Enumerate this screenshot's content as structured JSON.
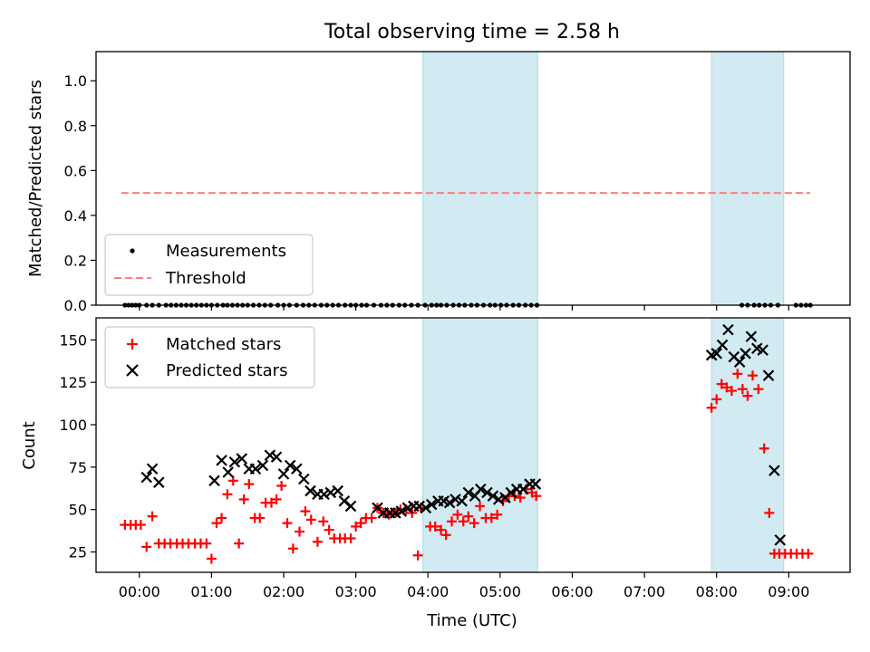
{
  "figure": {
    "title": "Total observing time = 2.58 h"
  },
  "colors": {
    "band": "#add8e6",
    "matched": "#ff0000",
    "predicted": "#000000",
    "measurement": "#000000",
    "threshold": "#ff7f7f"
  },
  "chart_data": [
    {
      "type": "scatter",
      "xlabel": "",
      "ylabel": "Matched/Predicted stars",
      "xlim": [
        -0.6,
        9.85
      ],
      "ylim": [
        0,
        1.13
      ],
      "yticks": [
        "0.0",
        "0.2",
        "0.4",
        "0.6",
        "0.8",
        "1.0"
      ],
      "grid": false,
      "legend": {
        "position": "lower-left",
        "entries": [
          "Measurements",
          "Threshold"
        ]
      },
      "shaded_intervals": [
        [
          3.93,
          5.52
        ],
        [
          7.93,
          8.93
        ]
      ],
      "threshold": {
        "name": "Threshold",
        "y": 0.5,
        "x": [
          -0.25,
          9.3
        ]
      },
      "series": [
        {
          "name": "Measurements",
          "x": [
            -0.2,
            -0.15,
            -0.1,
            -0.05,
            0,
            0.1,
            0.18,
            0.27,
            0.37,
            0.44,
            0.51,
            0.58,
            0.65,
            0.72,
            0.79,
            0.86,
            0.93,
            1,
            1.08,
            1.16,
            1.22,
            1.29,
            1.36,
            1.43,
            1.5,
            1.58,
            1.66,
            1.74,
            1.82,
            1.92,
            2,
            2.08,
            2.18,
            2.27,
            2.35,
            2.43,
            2.52,
            2.6,
            2.68,
            2.76,
            2.85,
            2.93,
            3,
            3.08,
            3.15,
            3.25,
            3.35,
            3.43,
            3.51,
            3.6,
            3.68,
            3.77,
            3.86,
            3.96,
            4.05,
            4.12,
            4.18,
            4.26,
            4.35,
            4.43,
            4.51,
            4.6,
            4.68,
            4.77,
            4.86,
            4.93,
            5.01,
            5.09,
            5.18,
            5.26,
            5.35,
            5.43,
            5.51,
            8.35,
            8.43,
            8.52,
            8.59,
            8.67,
            8.75,
            8.85,
            9.1,
            9.17,
            9.24,
            9.3
          ],
          "y": [
            0,
            0,
            0,
            0,
            0,
            0,
            0,
            0,
            0,
            0,
            0,
            0,
            0,
            0,
            0,
            0,
            0,
            0,
            0,
            0,
            0,
            0,
            0,
            0,
            0,
            0,
            0,
            0,
            0,
            0,
            0,
            0,
            0,
            0,
            0,
            0,
            0,
            0,
            0,
            0,
            0,
            0,
            0,
            0,
            0,
            0,
            0,
            0,
            0,
            0,
            0,
            0,
            0,
            0,
            0,
            0,
            0,
            0,
            0,
            0,
            0,
            0,
            0,
            0,
            0,
            0,
            0,
            0,
            0,
            0,
            0,
            0,
            0,
            0,
            0,
            0,
            0,
            0,
            0,
            0,
            0,
            0,
            0,
            0
          ]
        }
      ]
    },
    {
      "type": "scatter",
      "xlabel": "Time (UTC)",
      "ylabel": "Count",
      "xlim": [
        -0.6,
        9.85
      ],
      "ylim": [
        13,
        163
      ],
      "yticks": [
        "25",
        "50",
        "75",
        "100",
        "125",
        "150"
      ],
      "xticks": [
        "00:00",
        "01:00",
        "02:00",
        "03:00",
        "04:00",
        "05:00",
        "06:00",
        "07:00",
        "08:00",
        "09:00"
      ],
      "grid": false,
      "legend": {
        "position": "top-left",
        "entries": [
          "Matched stars",
          "Predicted stars"
        ]
      },
      "shaded_intervals": [
        [
          3.93,
          5.52
        ],
        [
          7.93,
          8.93
        ]
      ],
      "series": [
        {
          "name": "Matched stars",
          "x": [
            -0.2,
            -0.12,
            -0.05,
            0.02,
            0.1,
            0.18,
            0.27,
            0.35,
            0.43,
            0.52,
            0.6,
            0.68,
            0.77,
            0.85,
            0.93,
            1,
            1.07,
            1.14,
            1.22,
            1.3,
            1.38,
            1.45,
            1.52,
            1.6,
            1.67,
            1.75,
            1.83,
            1.9,
            1.97,
            2.05,
            2.13,
            2.22,
            2.3,
            2.38,
            2.47,
            2.55,
            2.63,
            2.7,
            2.78,
            2.85,
            2.93,
            3,
            3.07,
            3.14,
            3.22,
            3.3,
            3.38,
            3.46,
            3.55,
            3.62,
            3.7,
            3.78,
            3.86,
            3.9,
            4.03,
            4.1,
            4.18,
            4.25,
            4.33,
            4.41,
            4.49,
            4.56,
            4.64,
            4.72,
            4.8,
            4.88,
            4.96,
            5.04,
            5.12,
            5.2,
            5.28,
            5.36,
            5.44,
            5.5,
            7.93,
            8,
            8.07,
            8.14,
            8.21,
            8.29,
            8.36,
            8.43,
            8.5,
            8.58,
            8.66,
            8.73,
            8.8,
            8.87,
            8.95,
            9.03,
            9.11,
            9.19,
            9.27
          ],
          "y": [
            41,
            41,
            41,
            41,
            28,
            46,
            30,
            30,
            30,
            30,
            30,
            30,
            30,
            30,
            30,
            21,
            42,
            45,
            59,
            67,
            30,
            56,
            65,
            45,
            45,
            54,
            54,
            56,
            64,
            42,
            27,
            37,
            49,
            44,
            31,
            43,
            38,
            33,
            33,
            33,
            33,
            40,
            42,
            45,
            45,
            51,
            48,
            47,
            48,
            50,
            50,
            48,
            23,
            51,
            40,
            40,
            38,
            35,
            43,
            47,
            43,
            46,
            42,
            52,
            45,
            45,
            47,
            55,
            58,
            58,
            57,
            62,
            60,
            58,
            110,
            115,
            124,
            122,
            120,
            130,
            121,
            117,
            129,
            121,
            86,
            48,
            24,
            24,
            24,
            24,
            24,
            24,
            24
          ]
        },
        {
          "name": "Predicted stars",
          "x": [
            0.1,
            0.18,
            0.27,
            1.04,
            1.14,
            1.23,
            1.32,
            1.42,
            1.52,
            1.61,
            1.71,
            1.81,
            1.9,
            2,
            2.09,
            2.18,
            2.28,
            2.37,
            2.47,
            2.56,
            2.65,
            2.75,
            2.84,
            2.93,
            3.3,
            3.38,
            3.47,
            3.55,
            3.63,
            3.72,
            3.8,
            3.88,
            3.97,
            4.05,
            4.14,
            4.22,
            4.3,
            4.38,
            4.47,
            4.56,
            4.65,
            4.73,
            4.82,
            4.9,
            4.98,
            5.07,
            5.15,
            5.23,
            5.32,
            5.41,
            5.49,
            7.93,
            8,
            8.08,
            8.16,
            8.24,
            8.32,
            8.4,
            8.48,
            8.56,
            8.64,
            8.72,
            8.8,
            8.88
          ],
          "y": [
            69,
            74,
            66,
            67,
            79,
            72,
            78,
            80,
            74,
            74,
            76,
            82,
            81,
            71,
            76,
            74,
            68,
            61,
            59,
            59,
            60,
            61,
            55,
            52,
            51,
            48,
            48,
            48,
            49,
            51,
            52,
            52,
            51,
            53,
            55,
            55,
            54,
            56,
            55,
            60,
            58,
            62,
            60,
            58,
            56,
            57,
            60,
            62,
            62,
            65,
            65,
            141,
            142,
            147,
            156,
            140,
            137,
            142,
            152,
            145,
            144,
            129,
            73,
            32
          ]
        }
      ]
    }
  ]
}
